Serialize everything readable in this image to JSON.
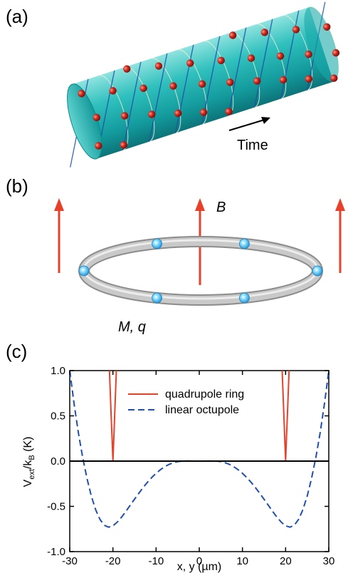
{
  "panels": {
    "a": {
      "label": "(a)",
      "time_label": "Time",
      "colors": {
        "cylinder": "#1fb3b3",
        "cylinder_dark": "#0e7f85",
        "cylinder_light": "#7fe0de",
        "ion": "#c0221b",
        "helix": "#1a4fa8",
        "ring_line": "#e9efd8"
      }
    },
    "b": {
      "label": "(b)",
      "field_label": "B",
      "particle_label": "M, q",
      "colors": {
        "arrow": "#e8412b",
        "ring": "#c8c8c8",
        "ion": "#38b6f0"
      }
    },
    "c": {
      "label": "(c)"
    }
  },
  "chart_data": {
    "type": "line",
    "xlabel": "x, y (µm)",
    "ylabel_main": "V",
    "ylabel_sub1": "ext",
    "ylabel_mid": "/k",
    "ylabel_sub2": "B",
    "ylabel_unit": " (K)",
    "xlim": [
      -30,
      30
    ],
    "ylim": [
      -1.0,
      1.0
    ],
    "x_ticks": [
      -30,
      -20,
      -10,
      0,
      10,
      20,
      30
    ],
    "y_ticks": [
      -1.0,
      -0.5,
      0.0,
      0.5,
      1.0
    ],
    "x_tick_labels": [
      "-30",
      "-20",
      "-10",
      "0",
      "10",
      "20",
      "30"
    ],
    "y_tick_labels": [
      "-1.0",
      "-0.5",
      "0.0",
      "0.5",
      "1.0"
    ],
    "legend_position": "top-right",
    "series": [
      {
        "name": "quadrupole ring",
        "color": "#e8412b",
        "style": "solid",
        "x": [
          -20.8,
          -20.6,
          -20.4,
          -20.2,
          -20.0,
          -19.8,
          -19.6,
          -19.4,
          -19.2,
          19.2,
          19.4,
          19.6,
          19.8,
          20.0,
          20.2,
          20.4,
          20.6,
          20.8
        ],
        "y": [
          1.0,
          0.75,
          0.5,
          0.25,
          0.0,
          0.25,
          0.5,
          0.75,
          1.0,
          1.0,
          0.75,
          0.5,
          0.25,
          0.0,
          0.25,
          0.5,
          0.75,
          1.0
        ]
      },
      {
        "name": "linear octupole",
        "color": "#1f4fb0",
        "style": "dashed",
        "x": [
          -30,
          -29,
          -28,
          -27,
          -26,
          -25,
          -24,
          -23,
          -22,
          -21,
          -20,
          -19,
          -18,
          -17,
          -16,
          -15,
          -14,
          -13,
          -12,
          -11,
          -10,
          -9,
          -8,
          -7,
          -6,
          -5,
          -4,
          -3,
          -2,
          -1,
          0,
          1,
          2,
          3,
          4,
          5,
          6,
          7,
          8,
          9,
          10,
          11,
          12,
          13,
          14,
          15,
          16,
          17,
          18,
          19,
          20,
          21,
          22,
          23,
          24,
          25,
          26,
          27,
          28,
          29,
          30
        ],
        "y": [
          1.0,
          0.633,
          0.314,
          0.039,
          -0.194,
          -0.386,
          -0.537,
          -0.645,
          -0.709,
          -0.73,
          -0.715,
          -0.675,
          -0.62,
          -0.556,
          -0.488,
          -0.421,
          -0.355,
          -0.292,
          -0.234,
          -0.181,
          -0.135,
          -0.095,
          -0.062,
          -0.036,
          -0.018,
          -0.006,
          0.0,
          0.001,
          0.001,
          0.0,
          0.0,
          0.0,
          0.001,
          0.001,
          0.0,
          -0.006,
          -0.018,
          -0.036,
          -0.062,
          -0.095,
          -0.135,
          -0.181,
          -0.234,
          -0.292,
          -0.355,
          -0.421,
          -0.488,
          -0.556,
          -0.62,
          -0.675,
          -0.715,
          -0.73,
          -0.709,
          -0.645,
          -0.537,
          -0.386,
          -0.194,
          0.039,
          0.314,
          0.633,
          1.0
        ]
      }
    ]
  }
}
